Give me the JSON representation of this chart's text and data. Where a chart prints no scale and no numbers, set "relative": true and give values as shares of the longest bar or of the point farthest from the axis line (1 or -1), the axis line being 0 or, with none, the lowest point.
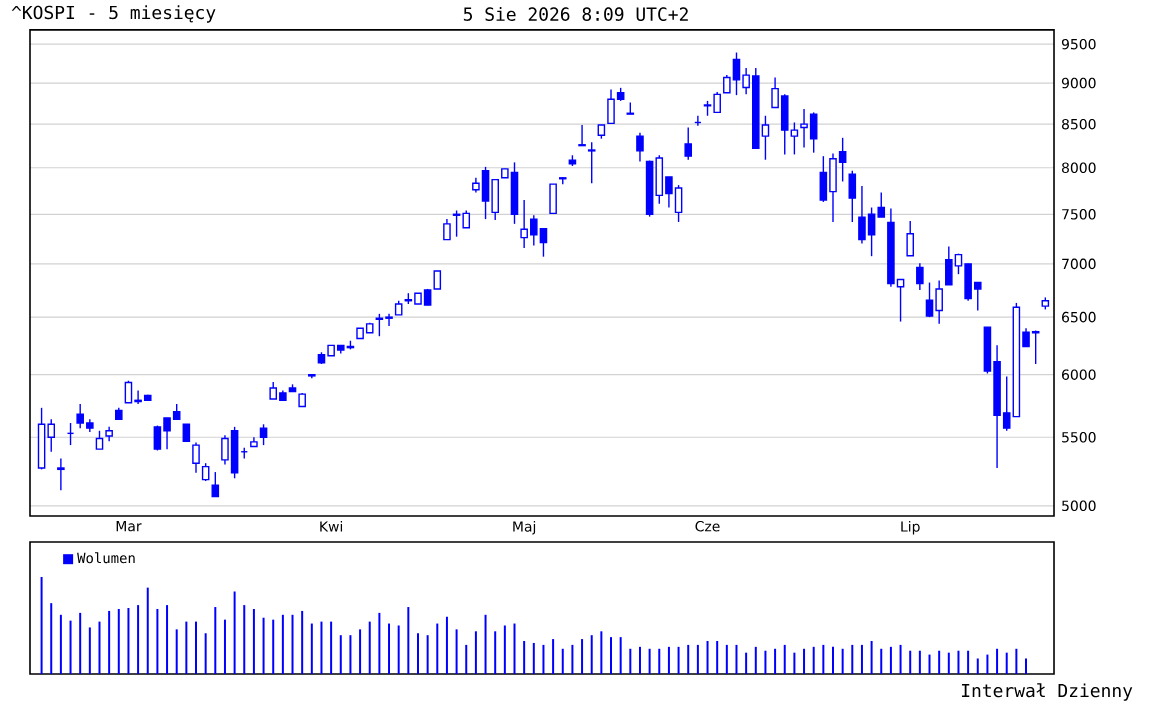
{
  "chart_data": [
    {
      "type": "candlestick",
      "title": "^KOSPI - 5 miesięcy",
      "subtitle": "5 Sie 2026 8:09 UTC+2",
      "color": "#0000ff",
      "log": true,
      "grid": "y",
      "categories": [
        null,
        null,
        null,
        null,
        null,
        null,
        null,
        null,
        null,
        "Mar",
        null,
        null,
        null,
        null,
        null,
        null,
        null,
        null,
        null,
        null,
        null,
        null,
        null,
        null,
        null,
        null,
        null,
        null,
        null,
        null,
        "Kwi",
        null,
        null,
        null,
        null,
        null,
        null,
        null,
        null,
        null,
        null,
        null,
        null,
        null,
        null,
        null,
        null,
        null,
        null,
        null,
        "Maj",
        null,
        null,
        null,
        null,
        null,
        null,
        null,
        null,
        null,
        null,
        null,
        null,
        null,
        null,
        null,
        null,
        null,
        null,
        "Cze",
        null,
        null,
        null,
        null,
        null,
        null,
        null,
        null,
        null,
        null,
        null,
        null,
        null,
        null,
        null,
        null,
        null,
        null,
        null,
        null,
        "Lip",
        null,
        null,
        null,
        null,
        null,
        null,
        null,
        null,
        null,
        null,
        null,
        null,
        null,
        null
      ],
      "ohlc": [
        [
          5270,
          5730,
          5260,
          5600
        ],
        [
          5500,
          5640,
          5390,
          5600
        ],
        [
          5260,
          5340,
          5110,
          5270
        ],
        [
          5530,
          5610,
          5440,
          5530
        ],
        [
          5680,
          5760,
          5570,
          5610
        ],
        [
          5610,
          5640,
          5540,
          5570
        ],
        [
          5410,
          5550,
          5410,
          5490
        ],
        [
          5510,
          5580,
          5470,
          5550
        ],
        [
          5710,
          5730,
          5640,
          5640
        ],
        [
          5770,
          5950,
          5770,
          5935
        ],
        [
          5790,
          5870,
          5760,
          5780
        ],
        [
          5830,
          5835,
          5785,
          5790
        ],
        [
          5580,
          5590,
          5400,
          5410
        ],
        [
          5650,
          5650,
          5410,
          5550
        ],
        [
          5700,
          5760,
          5640,
          5640
        ],
        [
          5600,
          5600,
          5465,
          5470
        ],
        [
          5305,
          5460,
          5235,
          5440
        ],
        [
          5185,
          5305,
          5175,
          5280
        ],
        [
          5145,
          5240,
          5065,
          5065
        ],
        [
          5330,
          5515,
          5295,
          5490
        ],
        [
          5550,
          5580,
          5195,
          5235
        ],
        [
          5390,
          5420,
          5340,
          5390
        ],
        [
          5430,
          5500,
          5430,
          5465
        ],
        [
          5570,
          5600,
          5440,
          5500
        ],
        [
          5800,
          5940,
          5800,
          5890
        ],
        [
          5850,
          5870,
          5790,
          5790
        ],
        [
          5890,
          5920,
          5860,
          5860
        ],
        [
          5740,
          5850,
          5740,
          5840
        ],
        [
          5990,
          6000,
          5970,
          6000
        ],
        [
          6170,
          6190,
          6090,
          6100
        ],
        [
          6160,
          6250,
          6160,
          6250
        ],
        [
          6250,
          6250,
          6180,
          6210
        ],
        [
          6240,
          6290,
          6215,
          6230
        ],
        [
          6310,
          6400,
          6310,
          6400
        ],
        [
          6360,
          6450,
          6360,
          6440
        ],
        [
          6480,
          6530,
          6330,
          6490
        ],
        [
          6490,
          6530,
          6420,
          6500
        ],
        [
          6520,
          6650,
          6520,
          6620
        ],
        [
          6650,
          6720,
          6620,
          6660
        ],
        [
          6620,
          6720,
          6620,
          6720
        ],
        [
          6750,
          6760,
          6610,
          6610
        ],
        [
          6760,
          6930,
          6760,
          6930
        ],
        [
          7240,
          7450,
          7240,
          7400
        ],
        [
          7490,
          7540,
          7270,
          7500
        ],
        [
          7360,
          7540,
          7360,
          7510
        ],
        [
          7760,
          7890,
          7730,
          7830
        ],
        [
          7970,
          8010,
          7450,
          7640
        ],
        [
          7520,
          7870,
          7440,
          7870
        ],
        [
          7890,
          7990,
          7890,
          7990
        ],
        [
          7950,
          8060,
          7400,
          7500
        ],
        [
          7260,
          7650,
          7155,
          7345
        ],
        [
          7450,
          7490,
          7180,
          7290
        ],
        [
          7350,
          7350,
          7070,
          7210
        ],
        [
          7510,
          7820,
          7510,
          7820
        ],
        [
          7880,
          7900,
          7820,
          7890
        ],
        [
          8085,
          8140,
          8020,
          8045
        ],
        [
          8250,
          8490,
          8250,
          8260
        ],
        [
          8200,
          8290,
          7830,
          8190
        ],
        [
          8370,
          8490,
          8330,
          8490
        ],
        [
          8510,
          8920,
          8510,
          8800
        ],
        [
          8880,
          8940,
          8780,
          8800
        ],
        [
          8630,
          8760,
          8620,
          8620
        ],
        [
          8360,
          8400,
          8070,
          8190
        ],
        [
          8070,
          8080,
          7475,
          7500
        ],
        [
          7700,
          8140,
          7610,
          8110
        ],
        [
          7900,
          7900,
          7570,
          7720
        ],
        [
          7520,
          7810,
          7420,
          7780
        ],
        [
          8270,
          8460,
          8090,
          8130
        ],
        [
          8520,
          8600,
          8480,
          8520
        ],
        [
          8720,
          8780,
          8600,
          8730
        ],
        [
          8640,
          8890,
          8640,
          8860
        ],
        [
          8880,
          9100,
          8880,
          9070
        ],
        [
          9300,
          9390,
          8850,
          9040
        ],
        [
          8945,
          9190,
          8860,
          9100
        ],
        [
          9090,
          9190,
          8220,
          8220
        ],
        [
          8360,
          8600,
          8090,
          8490
        ],
        [
          8700,
          9070,
          8700,
          8930
        ],
        [
          8840,
          8860,
          8150,
          8430
        ],
        [
          8360,
          8520,
          8150,
          8430
        ],
        [
          8460,
          8680,
          8230,
          8500
        ],
        [
          8620,
          8640,
          8170,
          8330
        ],
        [
          7950,
          8130,
          7630,
          7650
        ],
        [
          7740,
          8160,
          7420,
          8100
        ],
        [
          8180,
          8340,
          7850,
          8060
        ],
        [
          7930,
          7970,
          7420,
          7670
        ],
        [
          7470,
          7800,
          7200,
          7240
        ],
        [
          7500,
          7570,
          7075,
          7290
        ],
        [
          7570,
          7730,
          7470,
          7470
        ],
        [
          7415,
          7560,
          6780,
          6810
        ],
        [
          6780,
          6850,
          6460,
          6850
        ],
        [
          7080,
          7430,
          7080,
          7300
        ],
        [
          6965,
          7005,
          6750,
          6810
        ],
        [
          6655,
          6820,
          6500,
          6510
        ],
        [
          6560,
          6840,
          6440,
          6760
        ],
        [
          7040,
          7170,
          6800,
          6800
        ],
        [
          6980,
          7100,
          6900,
          7090
        ],
        [
          7000,
          7000,
          6650,
          6670
        ],
        [
          6820,
          6820,
          6560,
          6760
        ],
        [
          6410,
          6410,
          6010,
          6030
        ],
        [
          6110,
          6250,
          5270,
          5670
        ],
        [
          5690,
          5985,
          5550,
          5570
        ],
        [
          5660,
          6630,
          5660,
          6590
        ],
        [
          6365,
          6400,
          6240,
          6240
        ],
        [
          6360,
          6380,
          6090,
          6370
        ],
        [
          6600,
          6680,
          6570,
          6650
        ]
      ],
      "ylim": [
        4930,
        9690
      ],
      "yticks": [
        5000,
        5500,
        6000,
        6500,
        7000,
        7500,
        8000,
        8500,
        9000,
        9500
      ]
    },
    {
      "type": "bar",
      "relative": true,
      "legend": "top left",
      "annotations": [
        "Interwał Dzienny"
      ],
      "categories": [
        null,
        null,
        null,
        null,
        null,
        null,
        null,
        null,
        null,
        null,
        null,
        null,
        null,
        null,
        null,
        null,
        null,
        null,
        null,
        null,
        null,
        null,
        null,
        null,
        null,
        null,
        null,
        null,
        null,
        null,
        null,
        null,
        null,
        null,
        null,
        null,
        null,
        null,
        null,
        null,
        null,
        null,
        null,
        null,
        null,
        null,
        null,
        null,
        null,
        null,
        null,
        null,
        null,
        null,
        null,
        null,
        null,
        null,
        null,
        null,
        null,
        null,
        null,
        null,
        null,
        null,
        null,
        null,
        null,
        null,
        null,
        null,
        null,
        null,
        null,
        null,
        null,
        null,
        null,
        null,
        null,
        null,
        null,
        null,
        null,
        null,
        null,
        null,
        null,
        null,
        null,
        null,
        null,
        null,
        null,
        null,
        null,
        null,
        null,
        null,
        null,
        null,
        null,
        null,
        null
      ],
      "series": [
        {
          "name": "Wolumen",
          "color": "#0000ff",
          "values": [
            1.0,
            0.73,
            0.61,
            0.55,
            0.63,
            0.48,
            0.54,
            0.65,
            0.67,
            0.68,
            0.71,
            0.89,
            0.67,
            0.71,
            0.46,
            0.54,
            0.54,
            0.42,
            0.69,
            0.56,
            0.85,
            0.71,
            0.67,
            0.58,
            0.56,
            0.61,
            0.61,
            0.65,
            0.52,
            0.54,
            0.54,
            0.4,
            0.4,
            0.46,
            0.54,
            0.63,
            0.52,
            0.5,
            0.69,
            0.42,
            0.4,
            0.52,
            0.59,
            0.46,
            0.3,
            0.44,
            0.61,
            0.44,
            0.5,
            0.52,
            0.34,
            0.32,
            0.3,
            0.36,
            0.26,
            0.3,
            0.36,
            0.4,
            0.44,
            0.38,
            0.38,
            0.26,
            0.28,
            0.26,
            0.26,
            0.28,
            0.28,
            0.3,
            0.3,
            0.34,
            0.34,
            0.3,
            0.3,
            0.22,
            0.28,
            0.24,
            0.26,
            0.3,
            0.22,
            0.26,
            0.28,
            0.3,
            0.28,
            0.26,
            0.3,
            0.3,
            0.34,
            0.26,
            0.28,
            0.3,
            0.24,
            0.24,
            0.2,
            0.24,
            0.22,
            0.24,
            0.24,
            0.16,
            0.2,
            0.26,
            0.22,
            0.26,
            0.16,
            null,
            null
          ]
        }
      ]
    }
  ]
}
